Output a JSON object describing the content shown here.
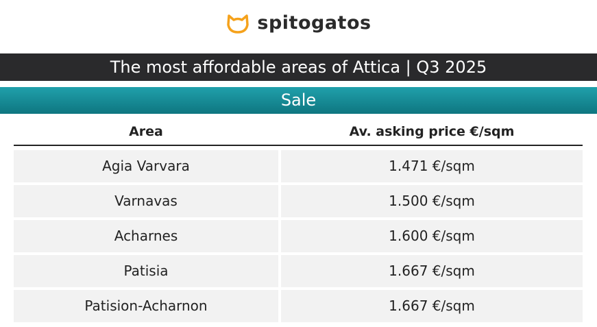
{
  "header": {
    "logo": "spitogatos",
    "title": "The most affordable areas of Attica | Q3 2025",
    "subtitle": "Sale"
  },
  "table": {
    "columns": [
      "Area",
      "Av. asking price €/sqm"
    ],
    "rows": [
      [
        "Agia Varvara",
        "1.471 €/sqm"
      ],
      [
        "Varnavas",
        "1.500 €/sqm"
      ],
      [
        "Acharnes",
        "1.600 €/sqm"
      ],
      [
        "Patisia",
        "1.667 €/sqm"
      ],
      [
        "Patision-Acharnon",
        "1.667 €/sqm"
      ]
    ]
  }
}
